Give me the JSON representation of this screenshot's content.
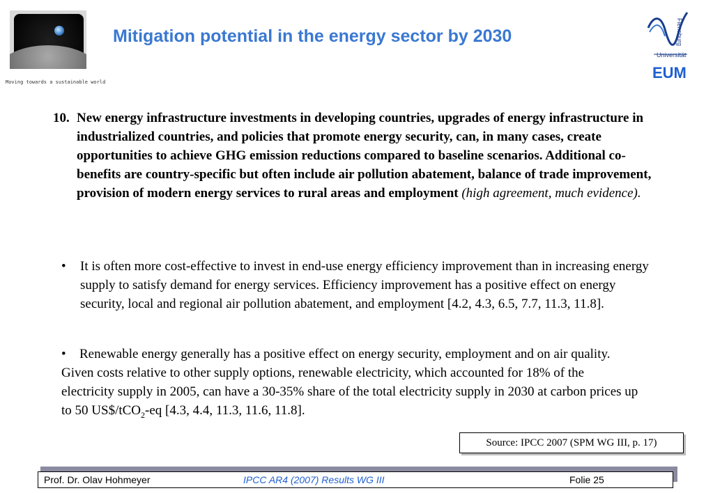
{
  "header": {
    "title": "Mitigation potential in the energy sector by 2030",
    "tagline": "Moving towards a sustainable world",
    "university_label": "Universität",
    "university_vertical": "Flensburg",
    "institute": "EUM"
  },
  "content": {
    "point10": {
      "number": "10.",
      "text": "New energy infrastructure investments in developing countries, upgrades of energy infrastructure in industrialized countries, and policies that promote energy security, can, in many cases, create opportunities to achieve GHG emission reductions compared to baseline scenarios. Additional co-benefits are country-specific but often include air pollution abatement, balance of trade improvement, provision of modern energy services to rural areas and employment ",
      "qualifier": "(high agreement, much evidence)."
    },
    "bullets": [
      {
        "symbol": "•",
        "text": "It is often more cost-effective to invest in end-use energy efficiency improvement than in increasing energy supply to satisfy demand for energy services. Efficiency improvement has a positive effect on energy security, local and regional air pollution abatement, and employment [4.2, 4.3, 6.5, 7.7, 11.3, 11.8]."
      },
      {
        "symbol": "•",
        "text_a": "Renewable energy generally has a positive effect on energy security, employment and on air quality. Given costs relative to other supply options, renewable electricity, which accounted for 18% of the electricity supply in 2005, can have a 30-35% share of the total electricity supply in 2030 at carbon prices up to 50 US$/tCO",
        "subscript": "2",
        "text_b": "-eq [4.3, 4.4, 11.3, 11.6, 11.8]."
      }
    ],
    "source": "Source: IPCC 2007 (SPM WG III, p. 17)"
  },
  "footer": {
    "author": "Prof. Dr. Olav Hohmeyer",
    "topic": "IPCC AR4 (2007) Results WG III",
    "slide": "Folie 25"
  }
}
